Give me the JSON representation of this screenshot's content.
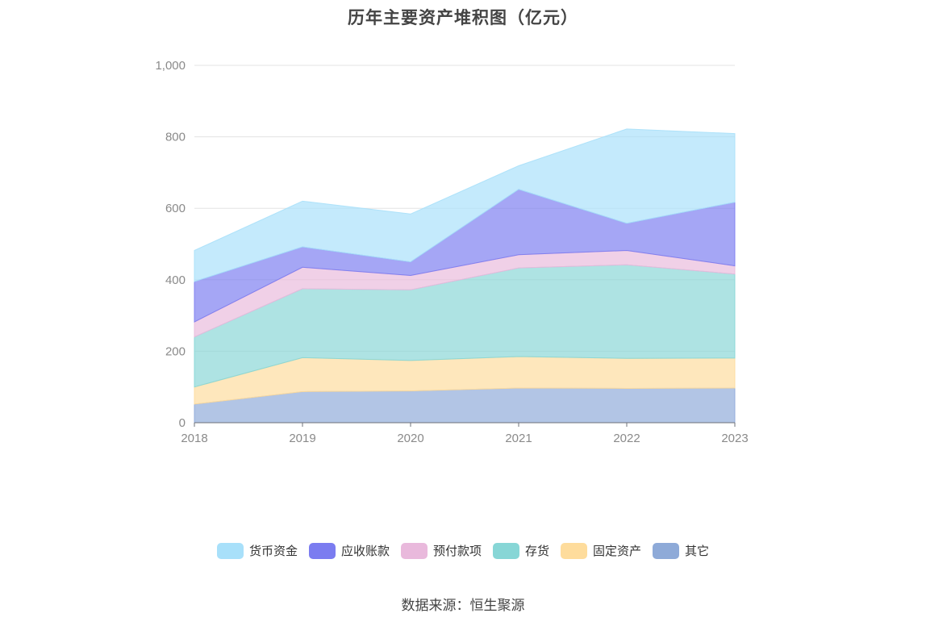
{
  "chart_data": {
    "type": "area",
    "stacked": true,
    "title": "历年主要资产堆积图（亿元）",
    "xlabel": "",
    "ylabel": "",
    "categories": [
      "2018",
      "2019",
      "2020",
      "2021",
      "2022",
      "2023"
    ],
    "ylim": [
      0,
      1000
    ],
    "yticks": [
      0,
      200,
      400,
      600,
      800,
      1000
    ],
    "ytick_labels": [
      "0",
      "200",
      "400",
      "600",
      "800",
      "1,000"
    ],
    "grid": true,
    "legend_position": "bottom",
    "series": [
      {
        "name": "其它",
        "color": "#8eaad8",
        "values": [
          52,
          87,
          89,
          97,
          96,
          97
        ]
      },
      {
        "name": "固定资产",
        "color": "#fedc9c",
        "values": [
          48,
          95,
          85,
          88,
          84,
          84
        ]
      },
      {
        "name": "存货",
        "color": "#87d6d6",
        "values": [
          140,
          193,
          198,
          248,
          262,
          235
        ]
      },
      {
        "name": "预付款项",
        "color": "#e9b9dc",
        "values": [
          42,
          60,
          40,
          37,
          40,
          23
        ]
      },
      {
        "name": "应收账款",
        "color": "#7b7cf0",
        "values": [
          113,
          57,
          38,
          183,
          76,
          178
        ]
      },
      {
        "name": "货币资金",
        "color": "#a8e0fa",
        "values": [
          87,
          128,
          134,
          66,
          264,
          192
        ]
      }
    ],
    "legend_order": [
      "货币资金",
      "应收账款",
      "预付款项",
      "存货",
      "固定资产",
      "其它"
    ]
  },
  "source": "数据来源：恒生聚源"
}
